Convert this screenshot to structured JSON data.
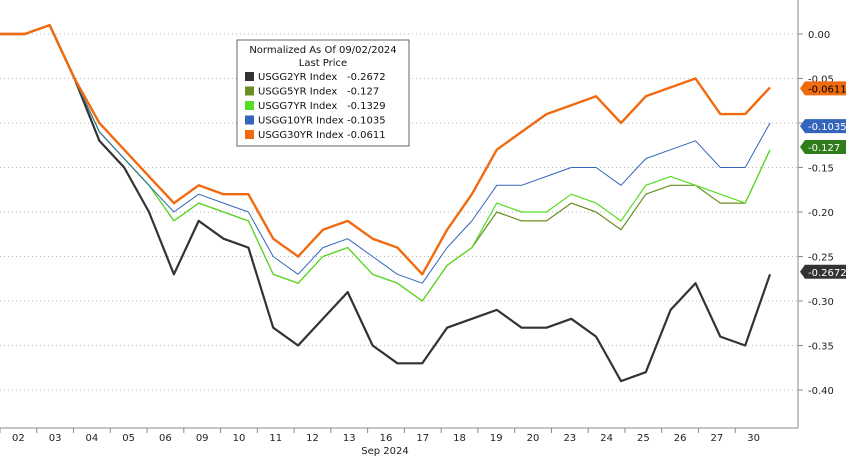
{
  "chart_data": {
    "type": "line",
    "legend": {
      "title": "Normalized As Of 09/02/2024",
      "subtitle": "Last Price",
      "placement": "top-left"
    },
    "xlabel": "Sep 2024",
    "x_ticks": [
      "02",
      "03",
      "04",
      "05",
      "06",
      "09",
      "10",
      "11",
      "12",
      "13",
      "16",
      "17",
      "18",
      "19",
      "20",
      "23",
      "24",
      "25",
      "26",
      "27",
      "30"
    ],
    "ylim": [
      -0.43,
      0.03
    ],
    "y_ticks": [
      0.0,
      -0.05,
      -0.1,
      -0.15,
      -0.2,
      -0.25,
      -0.3,
      -0.35,
      -0.4
    ],
    "y_tick_labels": [
      "0.00",
      "-0.05",
      "-0.10",
      "-0.15",
      "-0.20",
      "-0.25",
      "-0.30",
      "-0.35",
      "-0.40"
    ],
    "gridlines": "horizontal dotted",
    "series": [
      {
        "name": "USGG2YR Index",
        "last_label": "-0.2672",
        "color": "#333333",
        "values": [
          0.0,
          0.0,
          0.01,
          -0.05,
          -0.12,
          -0.15,
          -0.2,
          -0.27,
          -0.21,
          -0.23,
          -0.24,
          -0.33,
          -0.35,
          -0.32,
          -0.29,
          -0.35,
          -0.37,
          -0.37,
          -0.33,
          -0.32,
          -0.31,
          -0.33,
          -0.33,
          -0.32,
          -0.34,
          -0.39,
          -0.38,
          -0.31,
          -0.28,
          -0.34,
          -0.35,
          -0.27
        ]
      },
      {
        "name": "USGG5YR Index",
        "last_label": "-0.127",
        "color": "#6b8e23",
        "values": [
          0.0,
          0.0,
          0.01,
          -0.05,
          -0.11,
          -0.14,
          -0.17,
          -0.21,
          -0.19,
          -0.2,
          -0.21,
          -0.27,
          -0.28,
          -0.25,
          -0.24,
          -0.27,
          -0.28,
          -0.3,
          -0.26,
          -0.24,
          -0.2,
          -0.21,
          -0.21,
          -0.19,
          -0.2,
          -0.22,
          -0.18,
          -0.17,
          -0.17,
          -0.19,
          -0.19,
          -0.13
        ]
      },
      {
        "name": "USGG7YR Index",
        "last_label": "-0.1329",
        "color": "#55dd22",
        "values": [
          0.0,
          0.0,
          0.01,
          -0.05,
          -0.11,
          -0.14,
          -0.17,
          -0.21,
          -0.19,
          -0.2,
          -0.21,
          -0.27,
          -0.28,
          -0.25,
          -0.24,
          -0.27,
          -0.28,
          -0.3,
          -0.26,
          -0.24,
          -0.19,
          -0.2,
          -0.2,
          -0.18,
          -0.19,
          -0.21,
          -0.17,
          -0.16,
          -0.17,
          -0.18,
          -0.19,
          -0.13
        ]
      },
      {
        "name": "USGG10YR Index",
        "last_label": "-0.1035",
        "color": "#3366bb",
        "values": [
          0.0,
          0.0,
          0.01,
          -0.05,
          -0.11,
          -0.14,
          -0.17,
          -0.2,
          -0.18,
          -0.19,
          -0.2,
          -0.25,
          -0.27,
          -0.24,
          -0.23,
          -0.25,
          -0.27,
          -0.28,
          -0.24,
          -0.21,
          -0.17,
          -0.17,
          -0.16,
          -0.15,
          -0.15,
          -0.17,
          -0.14,
          -0.13,
          -0.12,
          -0.15,
          -0.15,
          -0.1
        ]
      },
      {
        "name": "USGG30YR Index",
        "last_label": "-0.0611",
        "color": "#f06a10",
        "values": [
          0.0,
          0.0,
          0.01,
          -0.05,
          -0.1,
          -0.13,
          -0.16,
          -0.19,
          -0.17,
          -0.18,
          -0.18,
          -0.23,
          -0.25,
          -0.22,
          -0.21,
          -0.23,
          -0.24,
          -0.27,
          -0.22,
          -0.18,
          -0.13,
          -0.11,
          -0.09,
          -0.08,
          -0.07,
          -0.1,
          -0.07,
          -0.06,
          -0.05,
          -0.09,
          -0.09,
          -0.06
        ]
      }
    ],
    "last_value_badges": [
      {
        "series": "USGG30YR Index",
        "label": "-0.0611",
        "value": -0.0611,
        "bg": "#f06a10",
        "fg": "#000000"
      },
      {
        "series": "USGG10YR Index",
        "label": "-0.1035",
        "value": -0.1035,
        "bg": "#3366bb",
        "fg": "#ffffff"
      },
      {
        "series": "USGG5YR Index",
        "label": "-0.127",
        "value": -0.127,
        "bg": "#2e7d1a",
        "fg": "#ffffff"
      },
      {
        "series": "USGG2YR Index",
        "label": "-0.2672",
        "value": -0.2672,
        "bg": "#333333",
        "fg": "#ffffff"
      }
    ]
  }
}
